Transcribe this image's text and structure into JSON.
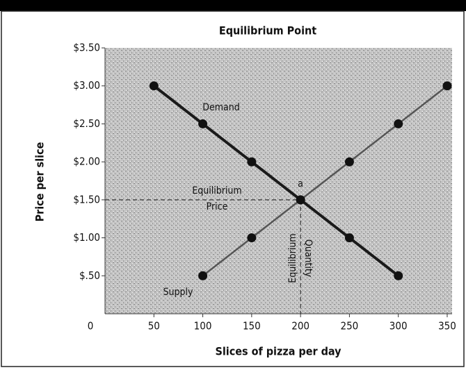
{
  "chart_data": {
    "type": "line",
    "title": "Equilibrium Point",
    "x_label": "Slices of pizza per day",
    "y_label": "Price per slice",
    "origin_label": "0",
    "series": [
      {
        "name": "Demand",
        "color": "#1a1a1a",
        "x": [
          50,
          100,
          150,
          200,
          250,
          300
        ],
        "values": [
          3.0,
          2.5,
          2.0,
          1.5,
          1.0,
          0.5
        ]
      },
      {
        "name": "Supply",
        "color": "#555555",
        "x": [
          100,
          150,
          200,
          250,
          300,
          350
        ],
        "values": [
          0.5,
          1.0,
          1.5,
          2.0,
          2.5,
          3.0
        ]
      }
    ],
    "equilibrium": {
      "x": 200,
      "y": 1.5,
      "label": "a",
      "price_label": [
        "Equilibrium",
        "Price"
      ],
      "quantity_label": [
        "Equilibrium",
        "Quantity"
      ]
    },
    "xlim": [
      0,
      355
    ],
    "ylim": [
      0,
      3.5
    ],
    "xticks": [
      50,
      100,
      150,
      200,
      250,
      300,
      350
    ],
    "yticks": [
      {
        "value": 0.5,
        "label": "$.50"
      },
      {
        "value": 1.0,
        "label": "$1.00"
      },
      {
        "value": 1.5,
        "label": "$1.50"
      },
      {
        "value": 2.0,
        "label": "$2.00"
      },
      {
        "value": 2.5,
        "label": "$2.50"
      },
      {
        "value": 3.0,
        "label": "$3.00"
      },
      {
        "value": 3.5,
        "label": "$3.50"
      }
    ]
  }
}
